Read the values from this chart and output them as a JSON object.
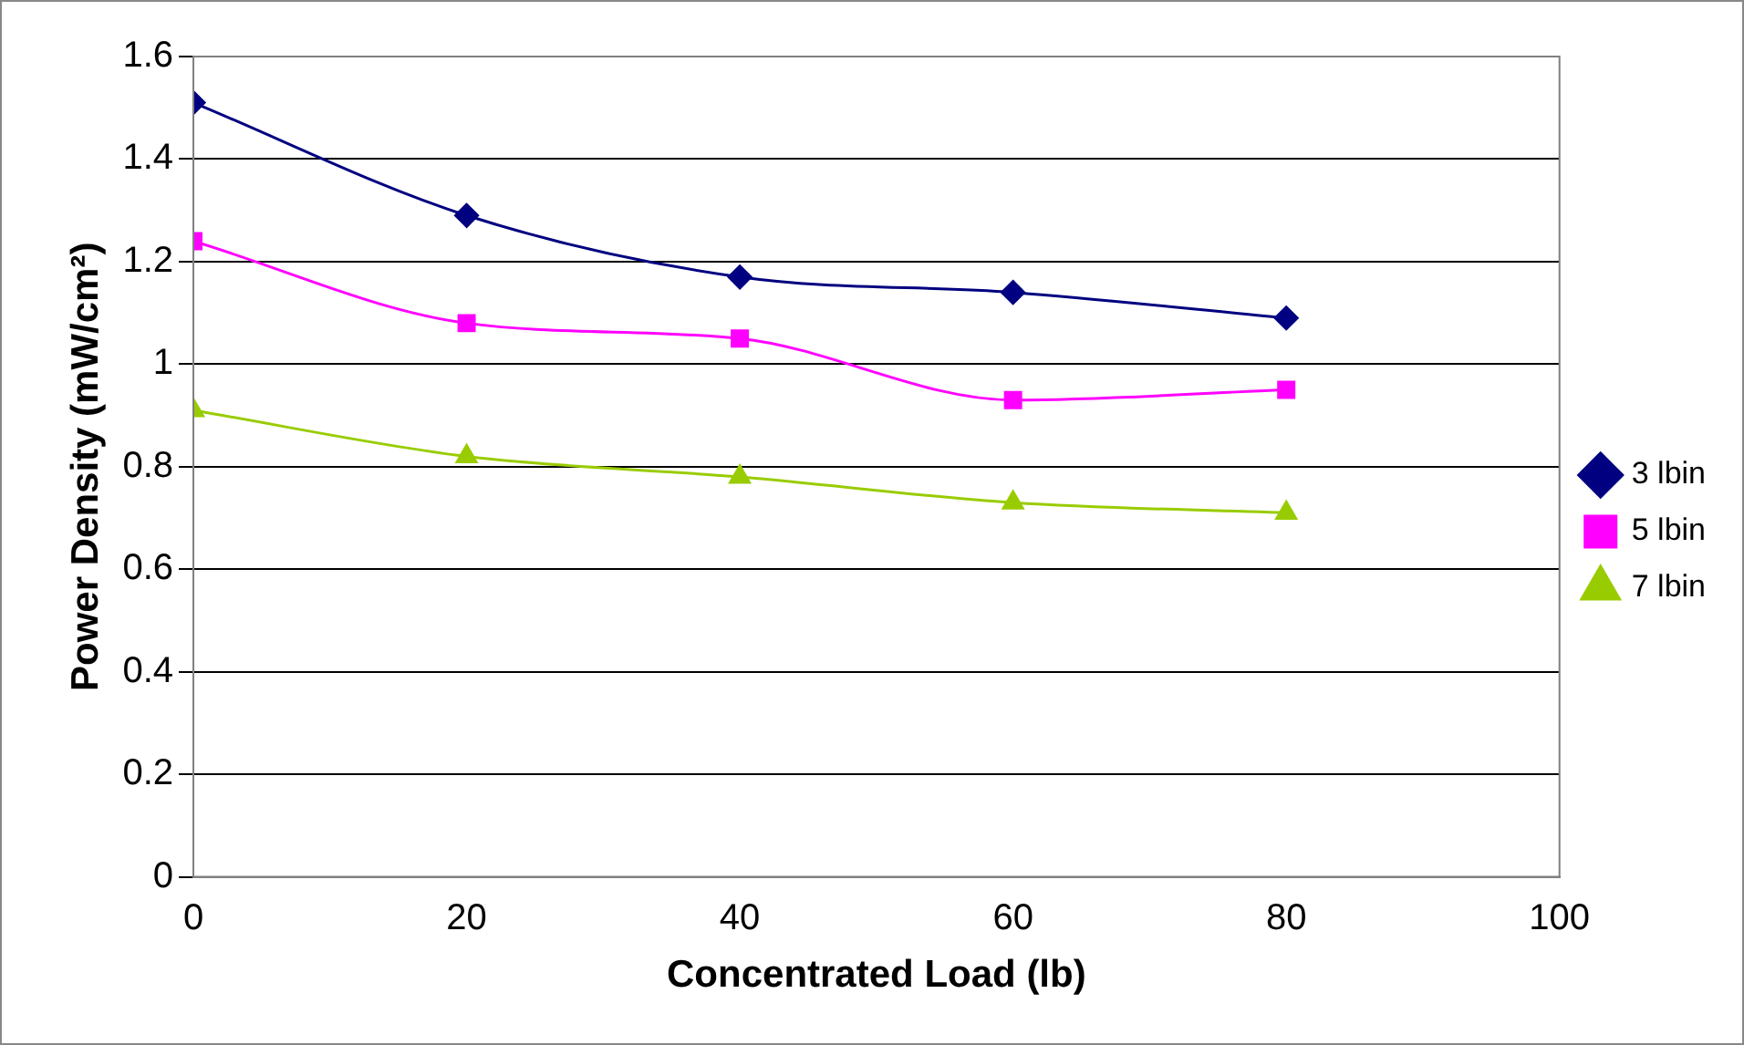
{
  "chart_data": {
    "type": "line",
    "xlabel": "Concentrated Load (lb)",
    "ylabel": "Power Density (mW/cm²)",
    "x": [
      0,
      20,
      40,
      60,
      80
    ],
    "series": [
      {
        "name": "3 lbin",
        "color": "#000080",
        "marker": "diamond",
        "values": [
          1.51,
          1.29,
          1.17,
          1.14,
          1.09
        ]
      },
      {
        "name": "5 lbin",
        "color": "#ff00ff",
        "marker": "square",
        "values": [
          1.24,
          1.08,
          1.05,
          0.93,
          0.95
        ]
      },
      {
        "name": "7 lbin",
        "color": "#99cc00",
        "marker": "triangle",
        "values": [
          0.91,
          0.82,
          0.78,
          0.73,
          0.71
        ]
      }
    ],
    "xlim": [
      0,
      100
    ],
    "xticks": [
      0,
      20,
      40,
      60,
      80,
      100
    ],
    "ylim": [
      0,
      1.6
    ],
    "yticks": [
      0,
      0.2,
      0.4,
      0.6,
      0.8,
      1,
      1.2,
      1.4,
      1.6
    ],
    "grid": "y",
    "legend": "right",
    "line_style": "solid"
  }
}
